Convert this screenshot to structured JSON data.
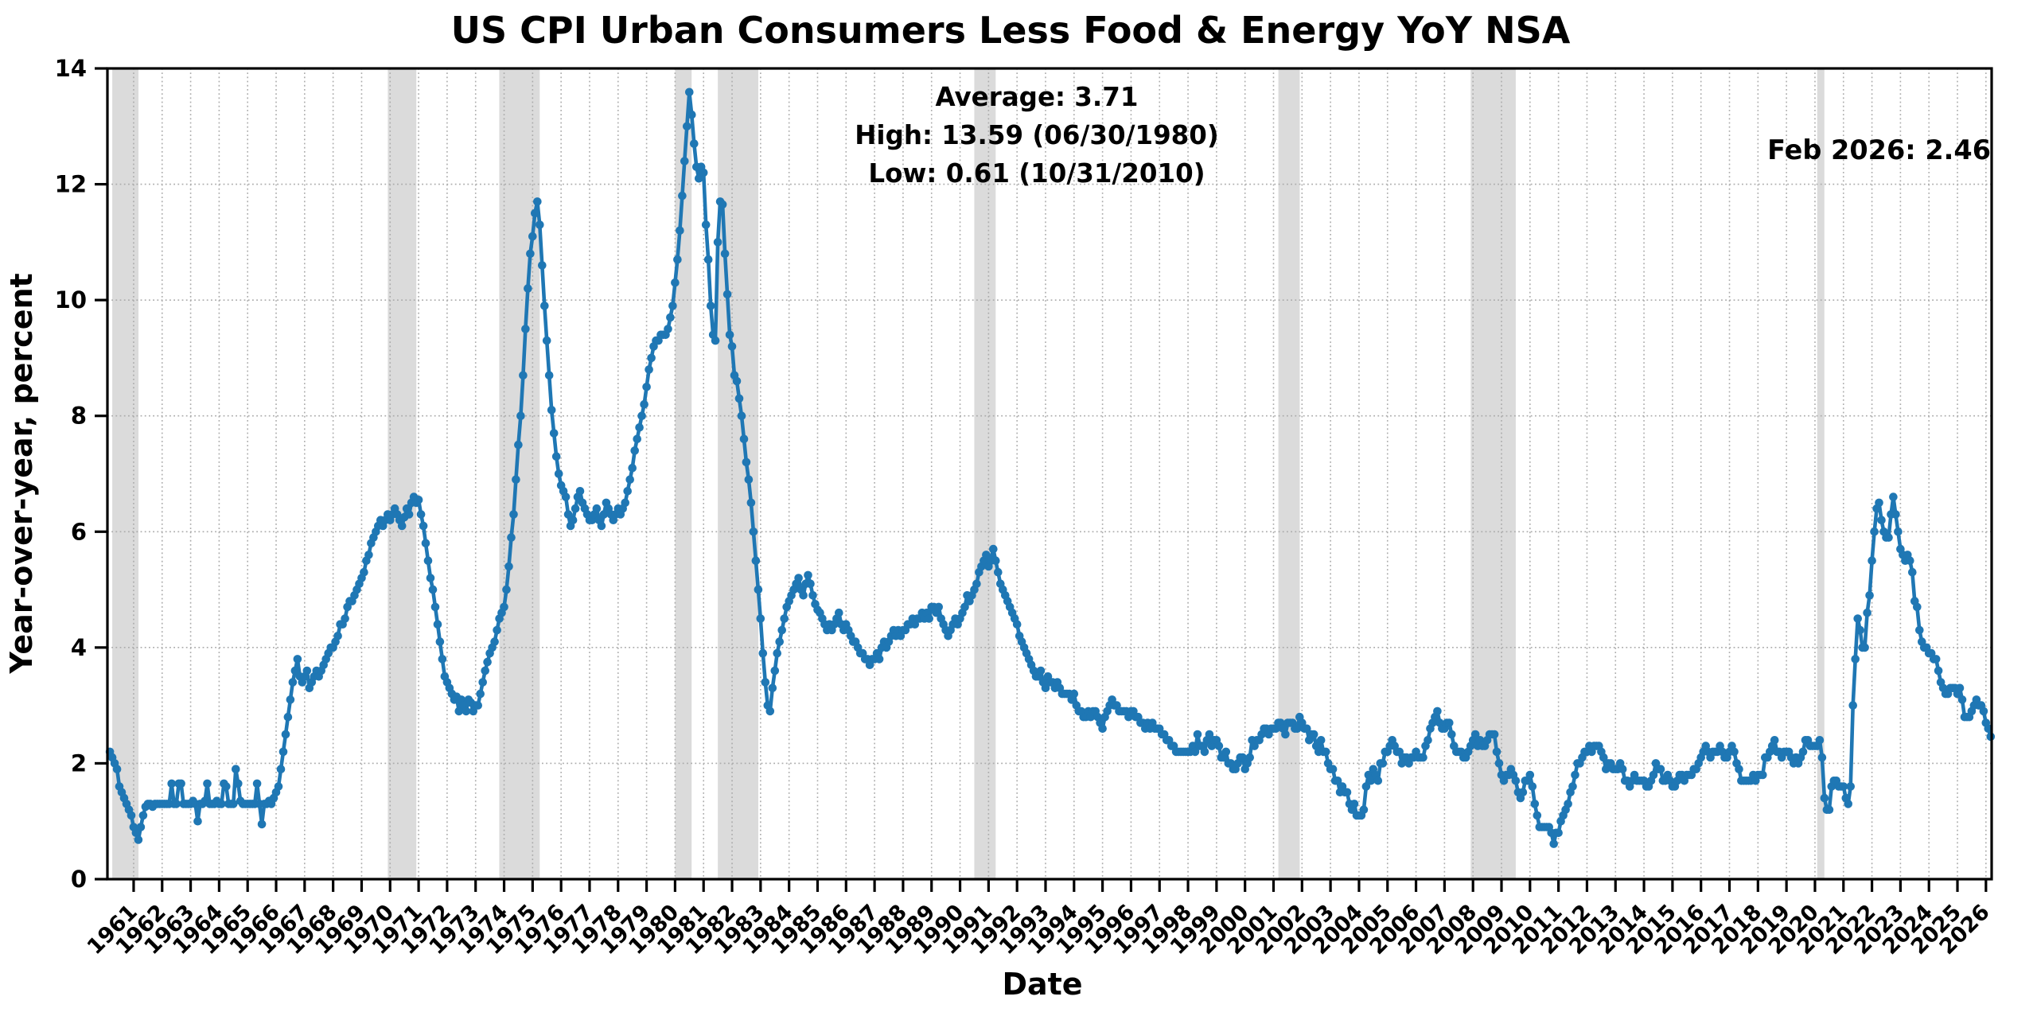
{
  "figure": {
    "title": "US CPI Urban Consumers Less Food & Energy YoY NSA",
    "xlabel": "Date",
    "ylabel": "Year-over-year, percent",
    "annotation_lines": [
      "Average: 3.71",
      "High: 13.59 (06/30/1980)",
      "Low: 0.61 (10/31/2010)"
    ],
    "annotation_latest": "Feb 2026: 2.46"
  },
  "chart_data": {
    "type": "line",
    "title": "US CPI Urban Consumers Less Food & Energy YoY NSA",
    "xlabel": "Date",
    "ylabel": "Year-over-year, percent",
    "ylim": [
      0,
      14
    ],
    "yticks": [
      0,
      2,
      4,
      6,
      8,
      10,
      12,
      14
    ],
    "xtick_years": [
      1961,
      1962,
      1963,
      1964,
      1965,
      1966,
      1967,
      1968,
      1969,
      1970,
      1971,
      1972,
      1973,
      1974,
      1975,
      1976,
      1977,
      1978,
      1979,
      1980,
      1981,
      1982,
      1983,
      1984,
      1985,
      1986,
      1987,
      1988,
      1989,
      1990,
      1991,
      1992,
      1993,
      1994,
      1995,
      1996,
      1997,
      1998,
      1999,
      2000,
      2001,
      2002,
      2003,
      2004,
      2005,
      2006,
      2007,
      2008,
      2009,
      2010,
      2011,
      2012,
      2013,
      2014,
      2015,
      2016,
      2017,
      2018,
      2019,
      2020,
      2021,
      2022,
      2023,
      2024,
      2025,
      2026
    ],
    "xlim_years": [
      1960.08,
      2026.2
    ],
    "grid": {
      "style": "dotted",
      "color": "#ababab"
    },
    "legend": "none",
    "line_color": "#1f77b4",
    "marker": "circle",
    "recession_band_color": "#d7d7d7",
    "stats": {
      "average": 3.71,
      "high_value": 13.59,
      "high_date": "06/30/1980",
      "low_value": 0.61,
      "low_date": "10/31/2010",
      "latest_label": "Feb 2026",
      "latest_value": 2.46
    },
    "recession_bands_years": [
      [
        1960.25,
        1961.17
      ],
      [
        1969.92,
        1970.92
      ],
      [
        1973.83,
        1975.25
      ],
      [
        1980.0,
        1980.58
      ],
      [
        1981.5,
        1982.92
      ],
      [
        1990.5,
        1991.25
      ],
      [
        2001.17,
        2001.92
      ],
      [
        2007.92,
        2009.5
      ],
      [
        2020.08,
        2020.33
      ]
    ],
    "series": {
      "name": "US CPI Urban Consumers Less Food & Energy YoY NSA",
      "frequency": "monthly",
      "start_year": 1960,
      "start_month": 2,
      "values_by_year": {
        "1960": [
          2.2,
          2.1,
          2.0,
          1.9,
          1.6,
          1.5,
          1.4,
          1.3,
          1.2,
          1.1,
          0.9
        ],
        "1961": [
          0.8,
          0.68,
          0.9,
          1.1,
          1.25,
          1.3,
          1.3,
          1.25,
          1.3,
          1.3,
          1.3,
          1.3
        ],
        "1962": [
          1.3,
          1.3,
          1.3,
          1.65,
          1.3,
          1.3,
          1.65,
          1.65,
          1.3,
          1.3,
          1.3,
          1.3
        ],
        "1963": [
          1.35,
          1.3,
          1.0,
          1.3,
          1.3,
          1.35,
          1.65,
          1.3,
          1.3,
          1.3,
          1.35,
          1.3
        ],
        "1964": [
          1.3,
          1.65,
          1.6,
          1.3,
          1.3,
          1.3,
          1.9,
          1.65,
          1.35,
          1.3,
          1.3,
          1.3
        ],
        "1965": [
          1.3,
          1.3,
          1.3,
          1.65,
          1.3,
          0.95,
          1.3,
          1.3,
          1.35,
          1.3,
          1.4,
          1.5
        ],
        "1966": [
          1.6,
          1.9,
          2.2,
          2.5,
          2.8,
          3.1,
          3.4,
          3.6,
          3.8,
          3.5,
          3.4,
          3.5
        ],
        "1967": [
          3.6,
          3.3,
          3.4,
          3.5,
          3.6,
          3.5,
          3.6,
          3.7,
          3.8,
          3.9,
          4.0,
          4.0
        ],
        "1968": [
          4.1,
          4.2,
          4.4,
          4.4,
          4.5,
          4.7,
          4.8,
          4.8,
          4.9,
          5.0,
          5.1,
          5.2
        ],
        "1969": [
          5.3,
          5.5,
          5.6,
          5.8,
          5.9,
          6.0,
          6.1,
          6.2,
          6.1,
          6.2,
          6.3,
          6.2
        ],
        "1970": [
          6.3,
          6.4,
          6.3,
          6.2,
          6.1,
          6.25,
          6.4,
          6.3,
          6.5,
          6.6,
          6.5,
          6.55
        ],
        "1971": [
          6.3,
          6.1,
          5.8,
          5.5,
          5.2,
          5.0,
          4.7,
          4.4,
          4.1,
          3.8,
          3.5,
          3.4
        ],
        "1972": [
          3.3,
          3.2,
          3.1,
          3.15,
          2.9,
          3.1,
          3.0,
          2.9,
          3.1,
          3.05,
          2.9,
          3.0
        ],
        "1973": [
          3.0,
          3.2,
          3.4,
          3.6,
          3.75,
          3.9,
          4.0,
          4.1,
          4.3,
          4.5,
          4.6,
          4.7
        ],
        "1974": [
          5.0,
          5.4,
          5.9,
          6.3,
          6.9,
          7.5,
          8.0,
          8.7,
          9.5,
          10.2,
          10.8,
          11.1
        ],
        "1975": [
          11.5,
          11.7,
          11.3,
          10.6,
          9.9,
          9.3,
          8.7,
          8.1,
          7.7,
          7.3,
          7.0,
          6.8
        ],
        "1976": [
          6.7,
          6.6,
          6.3,
          6.1,
          6.2,
          6.4,
          6.6,
          6.7,
          6.5,
          6.4,
          6.3,
          6.2
        ],
        "1977": [
          6.2,
          6.3,
          6.4,
          6.2,
          6.1,
          6.3,
          6.5,
          6.4,
          6.3,
          6.2,
          6.3,
          6.4
        ],
        "1978": [
          6.3,
          6.4,
          6.5,
          6.7,
          6.9,
          7.1,
          7.4,
          7.6,
          7.8,
          8.0,
          8.2,
          8.5
        ],
        "1979": [
          8.8,
          9.0,
          9.2,
          9.3,
          9.3,
          9.4,
          9.4,
          9.4,
          9.5,
          9.7,
          9.9,
          10.3
        ],
        "1980": [
          10.7,
          11.2,
          11.8,
          12.4,
          13.0,
          13.59,
          13.2,
          12.7,
          12.3,
          12.1,
          12.3,
          12.2
        ],
        "1981": [
          11.3,
          10.7,
          9.9,
          9.4,
          9.3,
          11.0,
          11.7,
          11.65,
          10.8,
          10.1,
          9.4,
          9.2
        ],
        "1982": [
          8.7,
          8.6,
          8.3,
          8.0,
          7.6,
          7.2,
          6.9,
          6.5,
          6.0,
          5.5,
          5.0,
          4.5
        ],
        "1983": [
          3.9,
          3.4,
          3.0,
          2.9,
          3.3,
          3.6,
          3.9,
          4.1,
          4.3,
          4.5,
          4.7,
          4.8
        ],
        "1984": [
          4.9,
          5.0,
          5.1,
          5.2,
          5.0,
          4.9,
          5.1,
          5.25,
          5.1,
          4.9,
          4.75,
          4.65
        ],
        "1985": [
          4.6,
          4.5,
          4.4,
          4.3,
          4.4,
          4.3,
          4.4,
          4.5,
          4.6,
          4.4,
          4.3,
          4.4
        ],
        "1986": [
          4.3,
          4.2,
          4.1,
          4.1,
          4.0,
          3.9,
          3.9,
          3.8,
          3.8,
          3.7,
          3.8,
          3.8
        ],
        "1987": [
          3.9,
          3.8,
          4.0,
          4.1,
          4.0,
          4.1,
          4.2,
          4.3,
          4.2,
          4.3,
          4.2,
          4.3
        ],
        "1988": [
          4.3,
          4.4,
          4.4,
          4.5,
          4.4,
          4.5,
          4.5,
          4.6,
          4.5,
          4.6,
          4.5,
          4.7
        ],
        "1989": [
          4.7,
          4.6,
          4.7,
          4.5,
          4.4,
          4.3,
          4.2,
          4.3,
          4.4,
          4.5,
          4.4,
          4.5
        ],
        "1990": [
          4.6,
          4.7,
          4.9,
          4.8,
          4.9,
          5.0,
          5.1,
          5.3,
          5.4,
          5.5,
          5.6,
          5.4
        ],
        "1991": [
          5.5,
          5.7,
          5.5,
          5.3,
          5.1,
          5.0,
          4.9,
          4.8,
          4.7,
          4.6,
          4.5,
          4.4
        ],
        "1992": [
          4.2,
          4.1,
          4.0,
          3.9,
          3.8,
          3.7,
          3.6,
          3.5,
          3.5,
          3.6,
          3.4,
          3.3
        ],
        "1993": [
          3.5,
          3.4,
          3.4,
          3.3,
          3.4,
          3.3,
          3.2,
          3.2,
          3.2,
          3.2,
          3.1,
          3.2
        ],
        "1994": [
          3.0,
          2.9,
          2.9,
          2.8,
          2.8,
          2.9,
          2.8,
          2.9,
          2.9,
          2.8,
          2.7,
          2.6
        ],
        "1995": [
          2.8,
          2.9,
          3.0,
          3.1,
          3.0,
          3.0,
          2.9,
          2.9,
          2.9,
          2.9,
          2.8,
          2.9
        ],
        "1996": [
          2.9,
          2.8,
          2.8,
          2.7,
          2.7,
          2.6,
          2.7,
          2.6,
          2.7,
          2.6,
          2.6,
          2.6
        ],
        "1997": [
          2.5,
          2.5,
          2.4,
          2.4,
          2.3,
          2.3,
          2.2,
          2.2,
          2.2,
          2.2,
          2.2,
          2.2
        ],
        "1998": [
          2.2,
          2.3,
          2.2,
          2.5,
          2.3,
          2.3,
          2.2,
          2.4,
          2.5,
          2.3,
          2.4,
          2.4
        ],
        "1999": [
          2.3,
          2.1,
          2.1,
          2.2,
          2.0,
          2.0,
          1.9,
          1.9,
          2.0,
          2.1,
          2.1,
          1.9
        ],
        "2000": [
          2.0,
          2.1,
          2.4,
          2.3,
          2.4,
          2.4,
          2.5,
          2.6,
          2.6,
          2.5,
          2.6,
          2.6
        ],
        "2001": [
          2.6,
          2.7,
          2.7,
          2.6,
          2.5,
          2.7,
          2.7,
          2.7,
          2.6,
          2.6,
          2.8,
          2.7
        ],
        "2002": [
          2.6,
          2.6,
          2.4,
          2.5,
          2.5,
          2.3,
          2.2,
          2.4,
          2.2,
          2.2,
          2.0,
          1.9
        ],
        "2003": [
          1.9,
          1.7,
          1.7,
          1.5,
          1.6,
          1.5,
          1.5,
          1.3,
          1.2,
          1.3,
          1.1,
          1.1
        ],
        "2004": [
          1.1,
          1.2,
          1.6,
          1.8,
          1.7,
          1.9,
          1.8,
          1.7,
          2.0,
          2.0,
          2.2,
          2.2
        ],
        "2005": [
          2.3,
          2.4,
          2.3,
          2.2,
          2.2,
          2.0,
          2.1,
          2.1,
          2.0,
          2.1,
          2.1,
          2.2
        ],
        "2006": [
          2.1,
          2.1,
          2.1,
          2.3,
          2.4,
          2.6,
          2.7,
          2.8,
          2.9,
          2.7,
          2.6,
          2.6
        ],
        "2007": [
          2.7,
          2.7,
          2.5,
          2.3,
          2.2,
          2.2,
          2.2,
          2.1,
          2.1,
          2.2,
          2.3,
          2.4
        ],
        "2008": [
          2.5,
          2.3,
          2.4,
          2.3,
          2.3,
          2.4,
          2.5,
          2.5,
          2.5,
          2.2,
          2.0,
          1.8
        ],
        "2009": [
          1.7,
          1.8,
          1.8,
          1.9,
          1.8,
          1.7,
          1.5,
          1.4,
          1.5,
          1.7,
          1.7,
          1.8
        ],
        "2010": [
          1.6,
          1.3,
          1.1,
          0.9,
          0.9,
          0.9,
          0.9,
          0.9,
          0.8,
          0.61,
          0.8,
          0.8
        ],
        "2011": [
          1.0,
          1.1,
          1.2,
          1.3,
          1.5,
          1.6,
          1.8,
          2.0,
          2.0,
          2.1,
          2.2,
          2.2
        ],
        "2012": [
          2.3,
          2.2,
          2.3,
          2.3,
          2.3,
          2.2,
          2.1,
          1.9,
          2.0,
          2.0,
          1.9,
          1.9
        ],
        "2013": [
          1.9,
          2.0,
          1.9,
          1.7,
          1.7,
          1.6,
          1.7,
          1.8,
          1.7,
          1.7,
          1.7,
          1.7
        ],
        "2014": [
          1.6,
          1.6,
          1.7,
          1.8,
          2.0,
          1.9,
          1.9,
          1.7,
          1.7,
          1.8,
          1.7,
          1.6
        ],
        "2015": [
          1.6,
          1.7,
          1.8,
          1.8,
          1.7,
          1.8,
          1.8,
          1.8,
          1.9,
          1.9,
          2.0,
          2.1
        ],
        "2016": [
          2.2,
          2.3,
          2.2,
          2.1,
          2.2,
          2.2,
          2.2,
          2.3,
          2.2,
          2.1,
          2.1,
          2.2
        ],
        "2017": [
          2.3,
          2.2,
          2.0,
          1.9,
          1.7,
          1.7,
          1.7,
          1.7,
          1.7,
          1.8,
          1.7,
          1.8
        ],
        "2018": [
          1.8,
          1.8,
          2.1,
          2.1,
          2.2,
          2.3,
          2.4,
          2.2,
          2.2,
          2.1,
          2.2,
          2.2
        ],
        "2019": [
          2.2,
          2.1,
          2.0,
          2.1,
          2.0,
          2.1,
          2.2,
          2.4,
          2.4,
          2.3,
          2.3,
          2.3
        ],
        "2020": [
          2.3,
          2.4,
          2.1,
          1.4,
          1.2,
          1.2,
          1.6,
          1.7,
          1.7,
          1.6,
          1.6,
          1.6
        ],
        "2021": [
          1.4,
          1.3,
          1.6,
          3.0,
          3.8,
          4.5,
          4.3,
          4.0,
          4.0,
          4.6,
          4.9,
          5.5
        ],
        "2022": [
          6.0,
          6.4,
          6.5,
          6.2,
          6.0,
          5.9,
          5.9,
          6.3,
          6.6,
          6.3,
          6.0,
          5.7
        ],
        "2023": [
          5.6,
          5.5,
          5.6,
          5.5,
          5.3,
          4.8,
          4.7,
          4.3,
          4.1,
          4.0,
          4.0,
          3.9
        ],
        "2024": [
          3.9,
          3.8,
          3.8,
          3.6,
          3.4,
          3.3,
          3.2,
          3.2,
          3.3,
          3.3,
          3.3,
          3.2
        ],
        "2025": [
          3.3,
          3.1,
          2.8,
          2.8,
          2.8,
          2.9,
          3.0,
          3.1,
          3.0,
          3.0,
          2.9,
          2.7
        ],
        "2026": [
          2.6,
          2.46
        ]
      }
    }
  }
}
